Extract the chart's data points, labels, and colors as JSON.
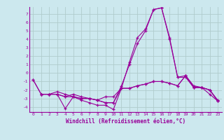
{
  "xlabel": "Windchill (Refroidissement éolien,°C)",
  "bg_color": "#cce8ee",
  "line_color": "#990099",
  "grid_color": "#b0cccc",
  "x_ticks": [
    0,
    1,
    2,
    3,
    4,
    5,
    6,
    7,
    8,
    9,
    10,
    11,
    12,
    13,
    14,
    15,
    16,
    17,
    18,
    19,
    20,
    21,
    22,
    23
  ],
  "y_ticks": [
    -4,
    -3,
    -2,
    -1,
    0,
    1,
    2,
    3,
    4,
    5,
    6,
    7
  ],
  "xlim": [
    -0.5,
    23.5
  ],
  "ylim": [
    -4.6,
    7.8
  ],
  "lines": [
    [
      null,
      -2.5,
      -2.5,
      -2.5,
      -4.2,
      -2.8,
      -3.2,
      -3.5,
      -3.8,
      -3.8,
      -4.3,
      -1.8,
      1.3,
      4.2,
      5.2,
      7.5,
      7.7,
      4.2,
      -0.5,
      -0.5,
      -1.7,
      -1.7,
      -2.5,
      -3.3
    ],
    [
      null,
      -2.5,
      -2.5,
      -2.5,
      -2.8,
      -2.5,
      -2.8,
      -3.0,
      -3.2,
      -3.5,
      -3.5,
      -1.8,
      -1.8,
      -1.5,
      -1.3,
      -1.0,
      -1.0,
      -1.2,
      -1.5,
      -0.3,
      -1.7,
      -1.7,
      -2.0,
      -3.3
    ],
    [
      -0.8,
      -2.5,
      -2.5,
      -2.5,
      -2.8,
      -2.8,
      -3.0,
      -3.0,
      -3.2,
      -2.8,
      -2.8,
      -1.8,
      -1.8,
      -1.5,
      -1.3,
      -1.0,
      -1.0,
      -1.2,
      -1.5,
      -0.3,
      -1.7,
      -1.7,
      -2.0,
      -3.3
    ],
    [
      -0.8,
      -2.5,
      -2.5,
      -2.2,
      -2.5,
      -2.8,
      -3.0,
      -3.0,
      -3.2,
      -3.5,
      -3.5,
      -1.5,
      1.0,
      3.5,
      5.0,
      7.5,
      7.7,
      4.0,
      -0.5,
      -0.3,
      -1.5,
      -1.7,
      -2.0,
      -3.2
    ]
  ]
}
